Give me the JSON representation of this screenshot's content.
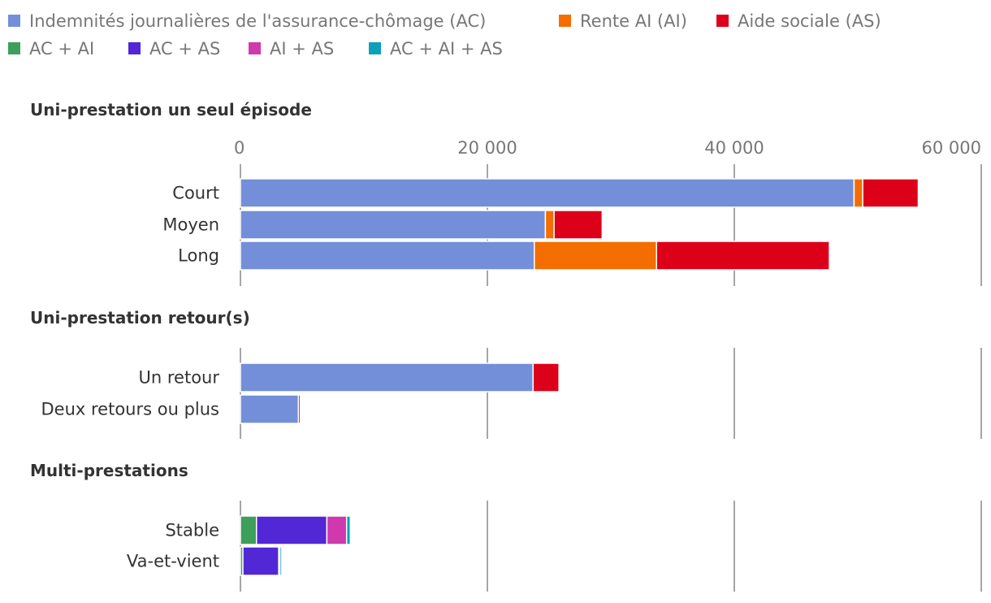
{
  "chart_data": {
    "type": "bar",
    "orientation": "horizontal",
    "stacked": true,
    "grid": true,
    "legend_position": "top-left",
    "xlim": [
      0,
      60000
    ],
    "x_ticks": [
      {
        "value": 0,
        "label": "0"
      },
      {
        "value": 20000,
        "label": "20 000"
      },
      {
        "value": 40000,
        "label": "40 000"
      },
      {
        "value": 60000,
        "label": "60 000"
      }
    ],
    "series": [
      {
        "key": "AC",
        "name": "Indemnités journalières de l'assurance-chômage (AC)",
        "color": "#748fd9"
      },
      {
        "key": "AI",
        "name": "Rente AI (AI)",
        "color": "#f46d00"
      },
      {
        "key": "AS",
        "name": "Aide sociale (AS)",
        "color": "#dd0019"
      },
      {
        "key": "AC_AI",
        "name": "AC + AI",
        "color": "#3d9f5a"
      },
      {
        "key": "AC_AS",
        "name": "AC + AS",
        "color": "#5127d6"
      },
      {
        "key": "AI_AS",
        "name": "AI + AS",
        "color": "#d038ad"
      },
      {
        "key": "AC_AI_AS",
        "name": "AC + AI + AS",
        "color": "#0aa1b8"
      }
    ],
    "panels": [
      {
        "title": "Uni-prestation un seul épisode",
        "categories": [
          {
            "label": "Court",
            "values": {
              "AC": 49700,
              "AI": 700,
              "AS": 4500
            }
          },
          {
            "label": "Moyen",
            "values": {
              "AC": 24700,
              "AI": 700,
              "AS": 3900
            }
          },
          {
            "label": "Long",
            "values": {
              "AC": 23800,
              "AI": 9900,
              "AS": 14000
            }
          }
        ]
      },
      {
        "title": "Uni-prestation retour(s)",
        "categories": [
          {
            "label": "Un retour",
            "values": {
              "AC": 23700,
              "AS": 2100
            }
          },
          {
            "label": "Deux retours ou plus",
            "values": {
              "AC": 4700,
              "AS": 150
            }
          }
        ]
      },
      {
        "title": "Multi-prestations",
        "categories": [
          {
            "label": "Stable",
            "values": {
              "AC_AI": 1300,
              "AC_AS": 5700,
              "AI_AS": 1600,
              "AC_AI_AS": 300
            }
          },
          {
            "label": "Va-et-vient",
            "values": {
              "AC_AI": 200,
              "AC_AS": 2900,
              "AI_AS": 100,
              "AC_AI_AS": 150
            }
          }
        ]
      }
    ]
  }
}
